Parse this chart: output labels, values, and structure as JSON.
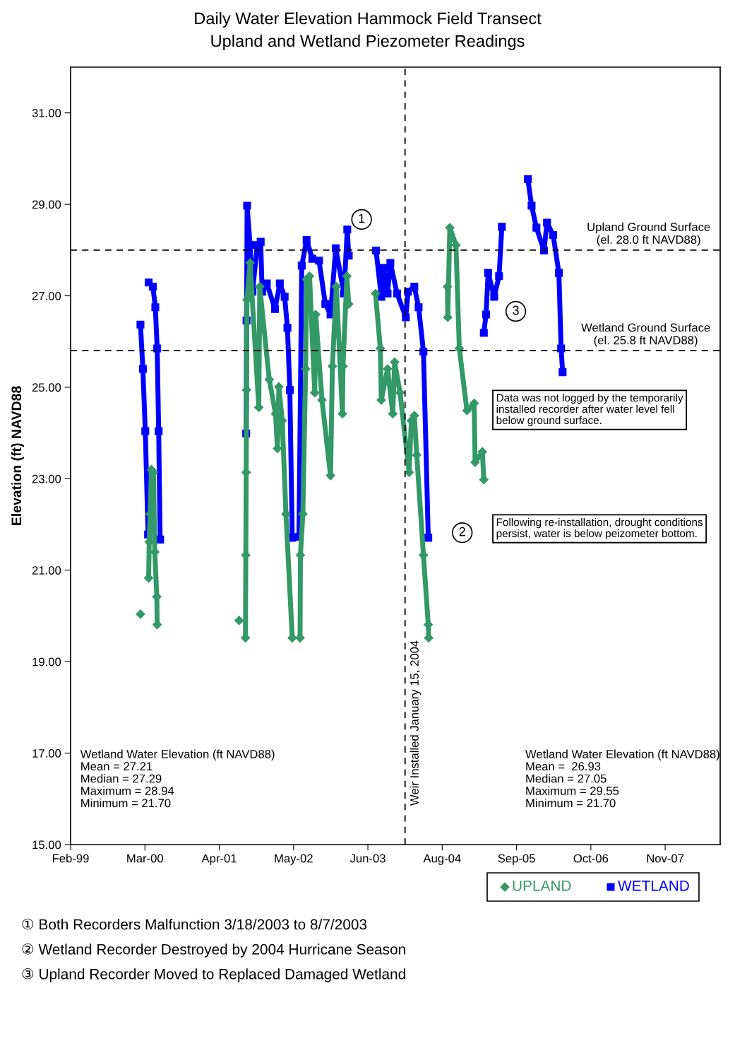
{
  "chart_data": {
    "type": "line",
    "title": "Daily Water Elevation Hammock Field Transect",
    "subtitle": "Upland and Wetland Piezometer Readings",
    "ylabel": "Elevation (ft) NAVD88",
    "xlim": [
      "1999-02-10",
      "2008-09-06"
    ],
    "xticks": [
      {
        "value": "1999-02-10",
        "label": "Feb-99"
      },
      {
        "value": "2000-03-16",
        "label": "Mar-00"
      },
      {
        "value": "2001-04-20",
        "label": "Apr-01"
      },
      {
        "value": "2002-05-25",
        "label": "May-02"
      },
      {
        "value": "2003-06-29",
        "label": "Jun-03"
      },
      {
        "value": "2004-08-02",
        "label": "Aug-04"
      },
      {
        "value": "2005-09-06",
        "label": "Sep-05"
      },
      {
        "value": "2006-10-11",
        "label": "Oct-06"
      },
      {
        "value": "2007-11-15",
        "label": "Nov-07"
      }
    ],
    "ylim": [
      15,
      32
    ],
    "yticks": [
      {
        "value": 15,
        "label": "15.00"
      },
      {
        "value": 17,
        "label": "17.00"
      },
      {
        "value": 19,
        "label": "19.00"
      },
      {
        "value": 21,
        "label": "21.00"
      },
      {
        "value": 23,
        "label": "23.00"
      },
      {
        "value": 25,
        "label": "25.00"
      },
      {
        "value": 27,
        "label": "27.00"
      },
      {
        "value": 29,
        "label": "29.00"
      },
      {
        "value": 31,
        "label": "31.00"
      }
    ],
    "legend": "bottom",
    "line_style": "solid",
    "series": [
      {
        "name": "UPLAND",
        "color": "#339966",
        "marker": "diamond",
        "x": [
          "2000-02-21",
          "2000-03-01",
          "2000-04-05",
          "2000-04-08",
          "2000-04-13",
          "2000-04-20",
          "2000-05-01",
          "2000-05-08",
          "2000-05-19",
          "2000-05-21",
          "2001-01-01",
          "2001-08-05",
          "2001-08-20",
          "2001-09-08",
          "2001-09-10",
          "2001-09-12",
          "2001-09-14",
          "2001-09-16",
          "2001-10-03",
          "2001-11-19",
          "2001-11-24",
          "2002-01-14",
          "2002-02-17",
          "2002-02-27",
          "2002-03-07",
          "2002-03-25",
          "2002-04-14",
          "2002-05-18",
          "2002-06-10",
          "2002-06-29",
          "2002-07-01",
          "2002-07-14",
          "2002-07-29",
          "2002-08-03",
          "2002-08-19",
          "2002-09-16",
          "2002-09-21",
          "2002-10-25",
          "2002-12-10",
          "2002-12-20",
          "2003-01-10",
          "2003-02-12",
          "2003-02-15",
          "2003-03-08",
          "2003-03-18",
          "2003-06-01",
          "2003-08-09",
          "2003-09-04",
          "2003-09-09",
          "2003-10-13",
          "2003-11-10",
          "2003-11-20",
          "2003-12-19",
          "2004-02-06",
          "2004-02-18",
          "2004-03-05",
          "2004-03-18",
          "2004-04-23",
          "2004-05-19",
          "2004-05-21",
          "2004-07-01",
          "2004-08-30",
          "2004-09-01",
          "2004-09-12",
          "2004-10-15",
          "2004-11-02",
          "2004-12-13",
          "2005-01-21",
          "2005-01-26",
          "2005-03-06",
          "2005-03-14"
        ],
        "values": [
          20.04,
          null,
          20.83,
          21.62,
          22.23,
          23.2,
          23.14,
          21.4,
          20.42,
          19.81,
          null,
          19.9,
          null,
          19.52,
          21.33,
          23.14,
          24.94,
          26.91,
          27.72,
          24.56,
          27.2,
          25.17,
          24.42,
          23.66,
          25.01,
          24.27,
          22.23,
          19.52,
          null,
          19.52,
          21.33,
          22.23,
          25.4,
          27.36,
          27.43,
          24.88,
          26.59,
          24.72,
          23.07,
          25.46,
          27.2,
          24.42,
          25.46,
          27.43,
          26.82,
          null,
          27.05,
          25.85,
          24.72,
          25.4,
          24.42,
          25.55,
          24.88,
          23.14,
          24.27,
          24.38,
          23.52,
          21.33,
          19.81,
          19.52,
          null,
          27.2,
          26.53,
          28.49,
          28.11,
          25.85,
          24.49,
          24.65,
          23.36,
          23.59,
          22.98
        ]
      },
      {
        "name": "WETLAND",
        "color": "#0000ff",
        "marker": "square",
        "x": [
          "2000-02-21",
          "2000-03-05",
          "2000-03-18",
          "2000-04-02",
          "2000-04-03",
          "2000-04-05",
          "2000-04-28",
          "2000-05-11",
          "2000-05-21",
          "2000-05-29",
          "2000-06-06",
          "2001-01-01",
          "2001-09-12",
          "2001-09-14",
          "2001-09-17",
          "2001-10-03",
          "2001-10-16",
          "2001-11-11",
          "2001-11-29",
          "2001-12-07",
          "2002-01-01",
          "2002-02-14",
          "2002-03-12",
          "2002-04-07",
          "2002-04-22",
          "2002-05-05",
          "2002-05-18",
          "2002-06-10",
          "2002-06-23",
          "2002-07-08",
          "2002-08-03",
          "2002-09-03",
          "2002-10-09",
          "2002-11-12",
          "2002-12-10",
          "2003-01-07",
          "2003-02-20",
          "2003-03-10",
          "2003-03-18",
          "2003-06-01",
          "2003-08-12",
          "2003-09-09",
          "2003-09-22",
          "2003-10-13",
          "2003-10-28",
          "2003-12-03",
          "2004-01-19",
          "2004-01-31",
          "2004-03-05",
          "2004-03-28",
          "2004-04-23",
          "2004-05-19",
          "2004-07-01",
          "2005-03-14",
          "2005-03-26",
          "2005-04-06",
          "2005-05-09",
          "2005-06-04",
          "2005-06-19",
          "2005-08-01",
          "2005-11-06",
          "2005-11-26",
          "2005-12-22",
          "2006-02-01",
          "2006-02-17",
          "2006-03-22",
          "2006-04-22",
          "2006-05-04",
          "2006-05-12"
        ],
        "values": [
          26.37,
          25.4,
          24.04,
          21.78,
          null,
          27.29,
          27.2,
          26.75,
          25.85,
          24.04,
          21.67,
          null,
          23.99,
          26.46,
          28.97,
          28.11,
          27.09,
          28.11,
          28.18,
          27.09,
          27.27,
          26.71,
          27.27,
          26.98,
          26.3,
          24.94,
          21.71,
          null,
          21.73,
          27.66,
          28.22,
          27.81,
          27.77,
          26.82,
          26.59,
          28.04,
          27.05,
          28.45,
          27.88,
          null,
          27.99,
          26.98,
          27.61,
          27.05,
          27.72,
          27.05,
          26.53,
          27.09,
          27.2,
          26.75,
          25.78,
          21.71,
          null,
          26.19,
          26.59,
          27.5,
          26.98,
          27.43,
          28.51,
          null,
          29.55,
          28.97,
          28.49,
          27.99,
          28.6,
          28.33,
          27.5,
          25.85,
          25.33
        ]
      }
    ],
    "ref_lines": [
      {
        "axis": "y",
        "value": 28.0,
        "label": "Upland Ground Surface\n(el. 28.0 ft NAVD88)",
        "color": "#000000",
        "line_style": "dashed"
      },
      {
        "axis": "y",
        "value": 25.8,
        "label": "Wetland Ground Surface\n(el. 25.8 ft NAVD88)",
        "color": "#000000",
        "line_style": "dashed"
      },
      {
        "axis": "x",
        "value": "2004-01-15",
        "label": "Weir Installed January 15, 2004",
        "color": "#000000",
        "line_style": "dashed"
      }
    ],
    "annotations": [
      "Wetland Water Elevation (ft NAVD88)\nMean = 27.21\nMedian = 27.29\nMaximum = 28.94\nMinimum = 21.70",
      "Wetland Water Elevation (ft NAVD88)\nMean =  26.93\nMedian = 27.05\nMaximum = 29.55\nMinimum = 21.70",
      "Data was not logged by the temporarily\ninstalled recorder after water level fell\nbelow ground surface.",
      "Following re-installation, drought conditions\npersist, water is below peizometer bottom.",
      "① Both Recorders Malfunction 3/18/2003 to 8/7/2003",
      "② Wetland Recorder Destroyed by 2004 Hurricane Season",
      "③ Upland Recorder Moved to Replaced Damaged Wetland",
      {
        "text": "1",
        "x": "2003-05-26",
        "y": 28.67
      },
      {
        "text": "2",
        "x": "2004-11-18",
        "y": 21.82
      },
      {
        "text": "3",
        "x": "2005-09-02",
        "y": 26.66
      }
    ]
  }
}
